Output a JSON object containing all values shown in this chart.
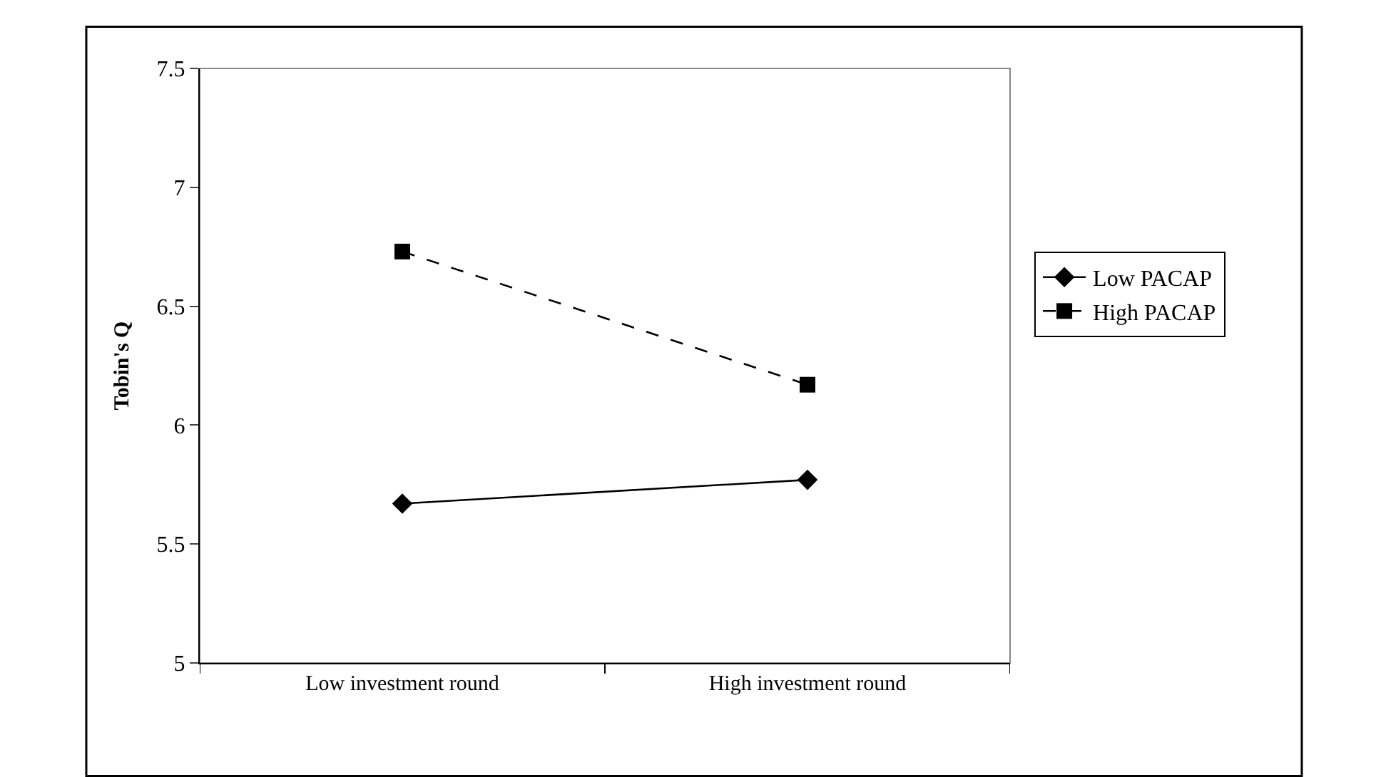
{
  "chart_data": {
    "type": "line",
    "ylabel": "Tobin's Q",
    "categories": [
      "Low investment round",
      "High investment round"
    ],
    "series": [
      {
        "name": "Low PACAP",
        "color": "#000000",
        "values": [
          5.67,
          5.77
        ],
        "marker": "diamond",
        "line_style": "solid"
      },
      {
        "name": "High PACAP",
        "color": "#000000",
        "values": [
          6.73,
          6.17
        ],
        "marker": "square",
        "line_style": "dashed"
      }
    ],
    "ylim": [
      5,
      7.5
    ],
    "yticks": [
      5,
      5.5,
      6,
      6.5,
      7,
      7.5
    ],
    "grid": false,
    "legend": "right"
  }
}
